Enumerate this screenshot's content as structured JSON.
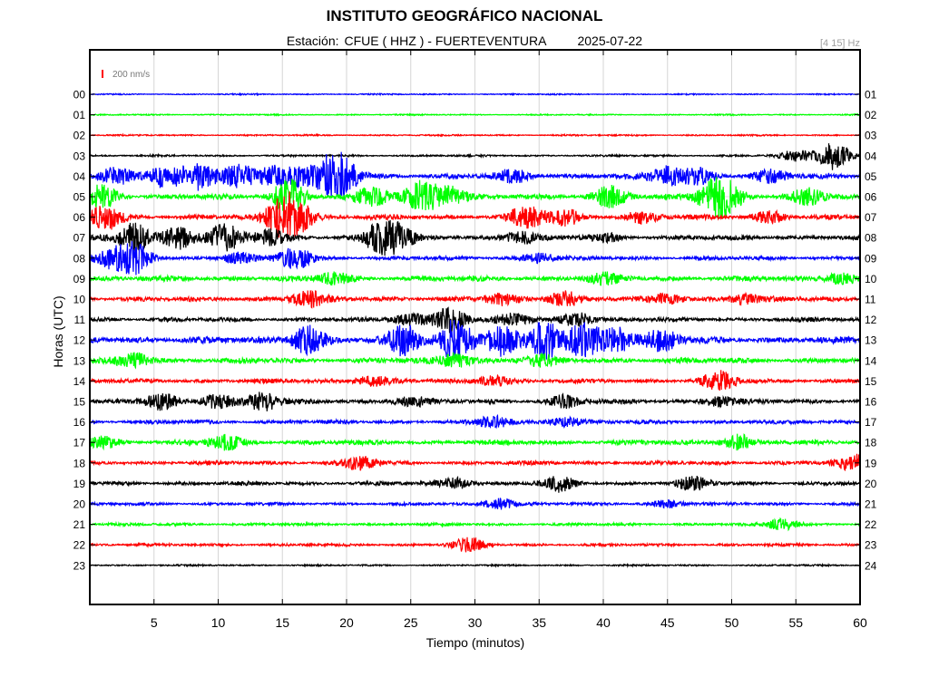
{
  "chart_data": {
    "type": "line",
    "title": "INSTITUTO GEOGRÁFICO NACIONAL",
    "station_label": "Estación:",
    "station": "CFUE ( HHZ ) - FUERTEVENTURA",
    "date": "2025-07-22",
    "filter": "[4 15] Hz",
    "scale_label": "200 nm/s",
    "xlabel": "Tiempo (minutos)",
    "ylabel": "Horas (UTC)",
    "xlim": [
      0,
      60
    ],
    "x_ticks": [
      5,
      10,
      15,
      20,
      25,
      30,
      35,
      40,
      45,
      50,
      55,
      60
    ],
    "left_hour_labels": [
      "00",
      "01",
      "02",
      "03",
      "04",
      "05",
      "06",
      "07",
      "08",
      "09",
      "10",
      "11",
      "12",
      "13",
      "14",
      "15",
      "16",
      "17",
      "18",
      "19",
      "20",
      "21",
      "22",
      "23"
    ],
    "right_hour_labels": [
      "01",
      "02",
      "03",
      "04",
      "05",
      "06",
      "07",
      "08",
      "09",
      "10",
      "11",
      "12",
      "13",
      "14",
      "15",
      "16",
      "17",
      "18",
      "19",
      "20",
      "21",
      "22",
      "23",
      "24"
    ],
    "colors": [
      "#0000ff",
      "#00ff00",
      "#ff0000",
      "#000000"
    ],
    "grid": true,
    "traces": [
      {
        "hour": "00",
        "color": "#0000ff",
        "noise": 0.6,
        "events": []
      },
      {
        "hour": "01",
        "color": "#00ff00",
        "noise": 0.6,
        "events": []
      },
      {
        "hour": "02",
        "color": "#ff0000",
        "noise": 0.7,
        "events": []
      },
      {
        "hour": "03",
        "color": "#000000",
        "noise": 0.9,
        "events": [
          {
            "t": 55.0,
            "amp": 6
          },
          {
            "t": 57.9,
            "amp": 16
          }
        ]
      },
      {
        "hour": "04",
        "color": "#0000ff",
        "noise": 2.5,
        "events": [
          {
            "t": 2.0,
            "amp": 10
          },
          {
            "t": 5.8,
            "amp": 12
          },
          {
            "t": 8.5,
            "amp": 14
          },
          {
            "t": 11.5,
            "amp": 12
          },
          {
            "t": 14.0,
            "amp": 10
          },
          {
            "t": 16.0,
            "amp": 10
          },
          {
            "t": 18.5,
            "amp": 14
          },
          {
            "t": 19.6,
            "amp": 20
          },
          {
            "t": 33.0,
            "amp": 6
          },
          {
            "t": 45.0,
            "amp": 10
          },
          {
            "t": 47.5,
            "amp": 8
          },
          {
            "t": 53.0,
            "amp": 6
          }
        ]
      },
      {
        "hour": "05",
        "color": "#00ff00",
        "noise": 2.3,
        "events": [
          {
            "t": 1.0,
            "amp": 12
          },
          {
            "t": 15.5,
            "amp": 18
          },
          {
            "t": 22.0,
            "amp": 10
          },
          {
            "t": 25.8,
            "amp": 16
          },
          {
            "t": 28.0,
            "amp": 12
          },
          {
            "t": 40.5,
            "amp": 12
          },
          {
            "t": 48.5,
            "amp": 16
          },
          {
            "t": 49.8,
            "amp": 14
          },
          {
            "t": 56.0,
            "amp": 8
          }
        ]
      },
      {
        "hour": "06",
        "color": "#ff0000",
        "noise": 2.2,
        "events": [
          {
            "t": 1.2,
            "amp": 14
          },
          {
            "t": 15.0,
            "amp": 20
          },
          {
            "t": 16.2,
            "amp": 14
          },
          {
            "t": 34.0,
            "amp": 12
          },
          {
            "t": 37.0,
            "amp": 8
          },
          {
            "t": 43.0,
            "amp": 6
          },
          {
            "t": 53.0,
            "amp": 6
          }
        ]
      },
      {
        "hour": "07",
        "color": "#000000",
        "noise": 2.2,
        "events": [
          {
            "t": 3.5,
            "amp": 16
          },
          {
            "t": 7.0,
            "amp": 12
          },
          {
            "t": 10.5,
            "amp": 14
          },
          {
            "t": 14.0,
            "amp": 8
          },
          {
            "t": 22.5,
            "amp": 14
          },
          {
            "t": 24.0,
            "amp": 12
          },
          {
            "t": 33.5,
            "amp": 6
          },
          {
            "t": 40.0,
            "amp": 4
          }
        ]
      },
      {
        "hour": "08",
        "color": "#0000ff",
        "noise": 1.8,
        "events": [
          {
            "t": 1.5,
            "amp": 10
          },
          {
            "t": 3.5,
            "amp": 16
          },
          {
            "t": 11.5,
            "amp": 6
          },
          {
            "t": 16.0,
            "amp": 12
          },
          {
            "t": 35.0,
            "amp": 5
          }
        ]
      },
      {
        "hour": "09",
        "color": "#00ff00",
        "noise": 2.5,
        "events": [
          {
            "t": 19.0,
            "amp": 6
          },
          {
            "t": 40.0,
            "amp": 5
          },
          {
            "t": 58.5,
            "amp": 6
          }
        ]
      },
      {
        "hour": "10",
        "color": "#ff0000",
        "noise": 2.3,
        "events": [
          {
            "t": 17.0,
            "amp": 8
          },
          {
            "t": 32.0,
            "amp": 6
          },
          {
            "t": 37.0,
            "amp": 8
          },
          {
            "t": 45.0,
            "amp": 5
          },
          {
            "t": 51.0,
            "amp": 5
          }
        ]
      },
      {
        "hour": "11",
        "color": "#000000",
        "noise": 2.0,
        "events": [
          {
            "t": 25.0,
            "amp": 6
          },
          {
            "t": 28.0,
            "amp": 14
          },
          {
            "t": 33.0,
            "amp": 6
          },
          {
            "t": 38.0,
            "amp": 8
          }
        ]
      },
      {
        "hour": "12",
        "color": "#0000ff",
        "noise": 3.0,
        "events": [
          {
            "t": 17.0,
            "amp": 16
          },
          {
            "t": 24.5,
            "amp": 16
          },
          {
            "t": 28.5,
            "amp": 22
          },
          {
            "t": 32.0,
            "amp": 16
          },
          {
            "t": 35.5,
            "amp": 20
          },
          {
            "t": 38.5,
            "amp": 18
          },
          {
            "t": 41.0,
            "amp": 14
          },
          {
            "t": 44.5,
            "amp": 12
          }
        ]
      },
      {
        "hour": "13",
        "color": "#00ff00",
        "noise": 2.5,
        "events": [
          {
            "t": 3.5,
            "amp": 8
          },
          {
            "t": 28.5,
            "amp": 8
          },
          {
            "t": 35.0,
            "amp": 6
          }
        ]
      },
      {
        "hour": "14",
        "color": "#ff0000",
        "noise": 2.0,
        "events": [
          {
            "t": 22.0,
            "amp": 6
          },
          {
            "t": 31.5,
            "amp": 6
          },
          {
            "t": 49.0,
            "amp": 10
          }
        ]
      },
      {
        "hour": "15",
        "color": "#000000",
        "noise": 2.2,
        "events": [
          {
            "t": 5.5,
            "amp": 8
          },
          {
            "t": 10.0,
            "amp": 8
          },
          {
            "t": 13.5,
            "amp": 10
          },
          {
            "t": 25.0,
            "amp": 5
          },
          {
            "t": 37.0,
            "amp": 6
          },
          {
            "t": 49.0,
            "amp": 5
          }
        ]
      },
      {
        "hour": "16",
        "color": "#0000ff",
        "noise": 1.8,
        "events": [
          {
            "t": 31.5,
            "amp": 6
          },
          {
            "t": 37.0,
            "amp": 5
          }
        ]
      },
      {
        "hour": "17",
        "color": "#00ff00",
        "noise": 2.2,
        "events": [
          {
            "t": 1.0,
            "amp": 6
          },
          {
            "t": 10.5,
            "amp": 8
          },
          {
            "t": 50.5,
            "amp": 8
          }
        ]
      },
      {
        "hour": "18",
        "color": "#ff0000",
        "noise": 1.8,
        "events": [
          {
            "t": 21.0,
            "amp": 7
          },
          {
            "t": 59.5,
            "amp": 9
          }
        ]
      },
      {
        "hour": "19",
        "color": "#000000",
        "noise": 1.8,
        "events": [
          {
            "t": 28.5,
            "amp": 6
          },
          {
            "t": 36.5,
            "amp": 8
          },
          {
            "t": 47.0,
            "amp": 7
          }
        ]
      },
      {
        "hour": "20",
        "color": "#0000ff",
        "noise": 1.4,
        "events": [
          {
            "t": 32.0,
            "amp": 6
          },
          {
            "t": 45.0,
            "amp": 4
          }
        ]
      },
      {
        "hour": "21",
        "color": "#00ff00",
        "noise": 1.3,
        "events": [
          {
            "t": 54.0,
            "amp": 6
          }
        ]
      },
      {
        "hour": "22",
        "color": "#ff0000",
        "noise": 1.3,
        "events": [
          {
            "t": 29.5,
            "amp": 7
          }
        ]
      },
      {
        "hour": "23",
        "color": "#000000",
        "noise": 0.8,
        "events": []
      }
    ]
  }
}
